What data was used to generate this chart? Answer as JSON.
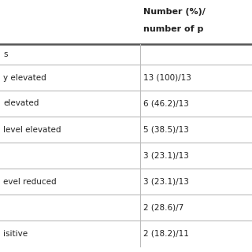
{
  "header_line1": "Number (%)/",
  "header_line2": "number of p",
  "rows": [
    {
      "left": "s",
      "right": "",
      "bold_left": false,
      "is_section": true
    },
    {
      "left": "y elevated",
      "right": "13 (100)/13",
      "bold_left": false,
      "is_section": false
    },
    {
      "left": "elevated",
      "right": "6 (46.2)/13",
      "bold_left": false,
      "is_section": false
    },
    {
      "left": "level elevated",
      "right": "5 (38.5)/13",
      "bold_left": false,
      "is_section": false
    },
    {
      "left": "",
      "right": "3 (23.1)/13",
      "bold_left": false,
      "is_section": false
    },
    {
      "left": "evel reduced",
      "right": "3 (23.1)/13",
      "bold_left": false,
      "is_section": false
    },
    {
      "left": "",
      "right": "2 (28.6)/7",
      "bold_left": false,
      "is_section": false
    },
    {
      "left": "isitive",
      "right": "2 (18.2)/11",
      "bold_left": false,
      "is_section": false
    }
  ],
  "bg_color": "#ffffff",
  "line_color_thick": "#555555",
  "line_color_thin": "#bbbbbb",
  "text_color": "#222222",
  "header_font_size": 8.0,
  "body_font_size": 7.5,
  "section_font_size": 7.5
}
